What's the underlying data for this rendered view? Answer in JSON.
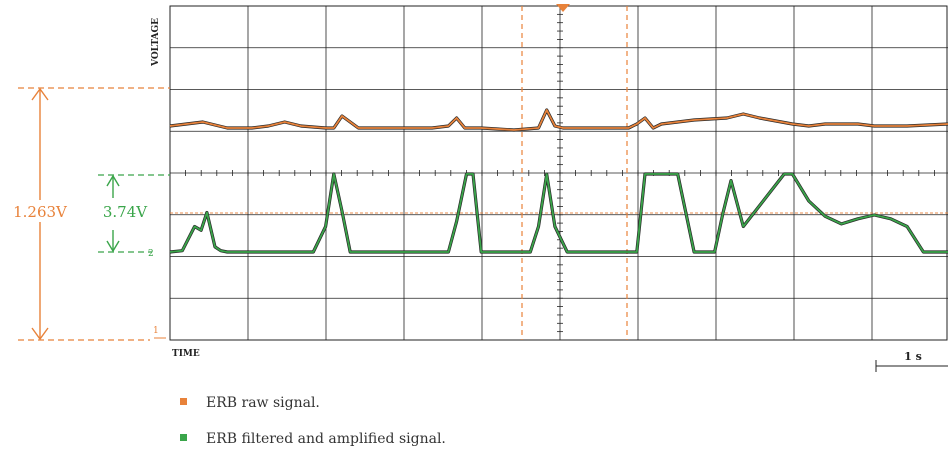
{
  "chart_data": {
    "type": "line",
    "title": "",
    "xlabel": "TIME",
    "ylabel": "VOLTAGE",
    "grid": true,
    "time_scale_label": "1 s",
    "channel_markers": [
      "1",
      "2"
    ],
    "measurements": [
      {
        "label": "1.263V",
        "color": "#e8823a"
      },
      {
        "label": "3.74V",
        "color": "#3aa54a"
      }
    ],
    "series": [
      {
        "name": "ERB raw signal.",
        "color": "#e8823a",
        "x": [
          0,
          0.2,
          0.4,
          0.6,
          0.7,
          0.8,
          1.0,
          1.2,
          1.4,
          1.6,
          1.9,
          2.0,
          2.1,
          2.3,
          2.5,
          2.8,
          3.2,
          3.4,
          3.5,
          3.6,
          3.8,
          4.2,
          4.5,
          4.6,
          4.7,
          4.8,
          5.0,
          5.3,
          5.6,
          5.7,
          5.8,
          5.9,
          6.0,
          6.4,
          6.8,
          6.9,
          7.0,
          7.2,
          7.6,
          7.8,
          8.0,
          8.4,
          8.6,
          9.0,
          9.5
        ],
        "values": [
          1.07,
          1.08,
          1.09,
          1.07,
          1.06,
          1.06,
          1.06,
          1.07,
          1.09,
          1.07,
          1.06,
          1.06,
          1.12,
          1.06,
          1.06,
          1.06,
          1.06,
          1.07,
          1.11,
          1.06,
          1.06,
          1.05,
          1.06,
          1.15,
          1.07,
          1.06,
          1.06,
          1.06,
          1.06,
          1.08,
          1.11,
          1.06,
          1.08,
          1.1,
          1.11,
          1.12,
          1.13,
          1.11,
          1.08,
          1.07,
          1.08,
          1.08,
          1.07,
          1.07,
          1.08
        ]
      },
      {
        "name": "ERB filtered and amplified signal.",
        "color": "#3aa54a",
        "x": [
          0,
          0.15,
          0.3,
          0.38,
          0.45,
          0.55,
          0.62,
          0.7,
          0.8,
          0.9,
          1.3,
          1.75,
          1.9,
          2.0,
          2.1,
          2.2,
          3.2,
          3.4,
          3.5,
          3.62,
          3.7,
          3.8,
          4.4,
          4.5,
          4.6,
          4.7,
          4.85,
          5.7,
          5.8,
          6.2,
          6.4,
          6.5,
          6.55,
          6.65,
          6.75,
          6.85,
          7.0,
          7.5,
          7.6,
          7.8,
          8.0,
          8.2,
          8.4,
          8.6,
          8.8,
          9.0,
          9.2,
          9.5
        ],
        "values": [
          0.0,
          0.05,
          1.0,
          0.85,
          1.55,
          0.2,
          0.05,
          0.0,
          0.0,
          0.0,
          0.0,
          0.0,
          1.0,
          3.06,
          1.6,
          0.0,
          0.0,
          0.0,
          1.2,
          3.06,
          3.06,
          0.0,
          0.0,
          1.0,
          3.05,
          1.0,
          0.0,
          0.0,
          3.06,
          3.06,
          0.0,
          0.0,
          0.0,
          0.0,
          1.5,
          2.8,
          1.0,
          3.06,
          3.06,
          2.0,
          1.4,
          1.1,
          1.3,
          1.45,
          1.3,
          1.0,
          0.0,
          0.0
        ]
      }
    ]
  }
}
